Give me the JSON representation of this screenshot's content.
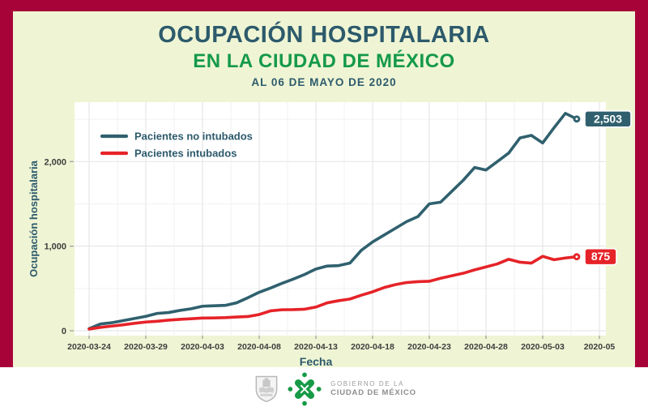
{
  "frame": {
    "border_color": "#a80338",
    "card_background": "#eff5d4",
    "footer_background": "#ffffff"
  },
  "header": {
    "title": "OCUPACIÓN HOSPITALARIA",
    "subtitle": "EN LA CIUDAD DE MÉXICO",
    "date_line": "AL 06 DE MAYO DE 2020"
  },
  "chart_data": {
    "type": "line",
    "title": "Ocupación hospitalaria en la Ciudad de México al 06 de mayo de 2020",
    "xlabel": "Fecha",
    "ylabel": "Ocupación hospitalaria",
    "x_tick_labels": [
      "2020-03-24",
      "2020-03-29",
      "2020-04-03",
      "2020-04-08",
      "2020-04-13",
      "2020-04-18",
      "2020-04-23",
      "2020-04-28",
      "2020-05-03",
      "2020-05"
    ],
    "y_ticks": [
      0,
      1000,
      2000
    ],
    "y_tick_labels": [
      "0",
      "1,000",
      "2,000"
    ],
    "ylim": [
      0,
      2720
    ],
    "grid": {
      "horizontal_every": 500,
      "vertical_every_days": 2.5,
      "color": "#ebebeb",
      "plot_background": "#ffffff"
    },
    "legend_position": "top-left-inside",
    "dates": [
      "2020-03-24",
      "2020-03-25",
      "2020-03-26",
      "2020-03-27",
      "2020-03-28",
      "2020-03-29",
      "2020-03-30",
      "2020-03-31",
      "2020-04-01",
      "2020-04-02",
      "2020-04-03",
      "2020-04-04",
      "2020-04-05",
      "2020-04-06",
      "2020-04-07",
      "2020-04-08",
      "2020-04-09",
      "2020-04-10",
      "2020-04-11",
      "2020-04-12",
      "2020-04-13",
      "2020-04-14",
      "2020-04-15",
      "2020-04-16",
      "2020-04-17",
      "2020-04-18",
      "2020-04-19",
      "2020-04-20",
      "2020-04-21",
      "2020-04-22",
      "2020-04-23",
      "2020-04-24",
      "2020-04-25",
      "2020-04-26",
      "2020-04-27",
      "2020-04-28",
      "2020-04-29",
      "2020-04-30",
      "2020-05-01",
      "2020-05-02",
      "2020-05-03",
      "2020-05-04",
      "2020-05-05",
      "2020-05-06"
    ],
    "series": [
      {
        "name": "Pacientes no intubados",
        "color": "#30606e",
        "end_label": "2,503",
        "end_value": 2503,
        "values": [
          25,
          80,
          95,
          120,
          145,
          170,
          205,
          215,
          240,
          260,
          290,
          295,
          300,
          330,
          390,
          455,
          505,
          560,
          610,
          665,
          730,
          765,
          770,
          800,
          950,
          1050,
          1130,
          1210,
          1290,
          1350,
          1500,
          1520,
          1650,
          1780,
          1930,
          1900,
          2000,
          2100,
          2280,
          2310,
          2220,
          2400,
          2570,
          2503
        ]
      },
      {
        "name": "Pacientes intubados",
        "color": "#e52328",
        "end_label": "875",
        "end_value": 875,
        "values": [
          20,
          40,
          55,
          70,
          88,
          103,
          112,
          125,
          135,
          142,
          150,
          152,
          155,
          162,
          168,
          192,
          235,
          248,
          250,
          255,
          280,
          330,
          355,
          375,
          420,
          460,
          510,
          545,
          570,
          580,
          585,
          620,
          650,
          680,
          720,
          755,
          790,
          845,
          810,
          800,
          880,
          840,
          860,
          875
        ]
      }
    ],
    "axis_text_color": "#3d3d3d",
    "axis_title_color": "#2d5a6c"
  },
  "footer": {
    "org_line1": "GOBIERNO DE LA",
    "org_line2": "CIUDAD DE MÉXICO"
  }
}
